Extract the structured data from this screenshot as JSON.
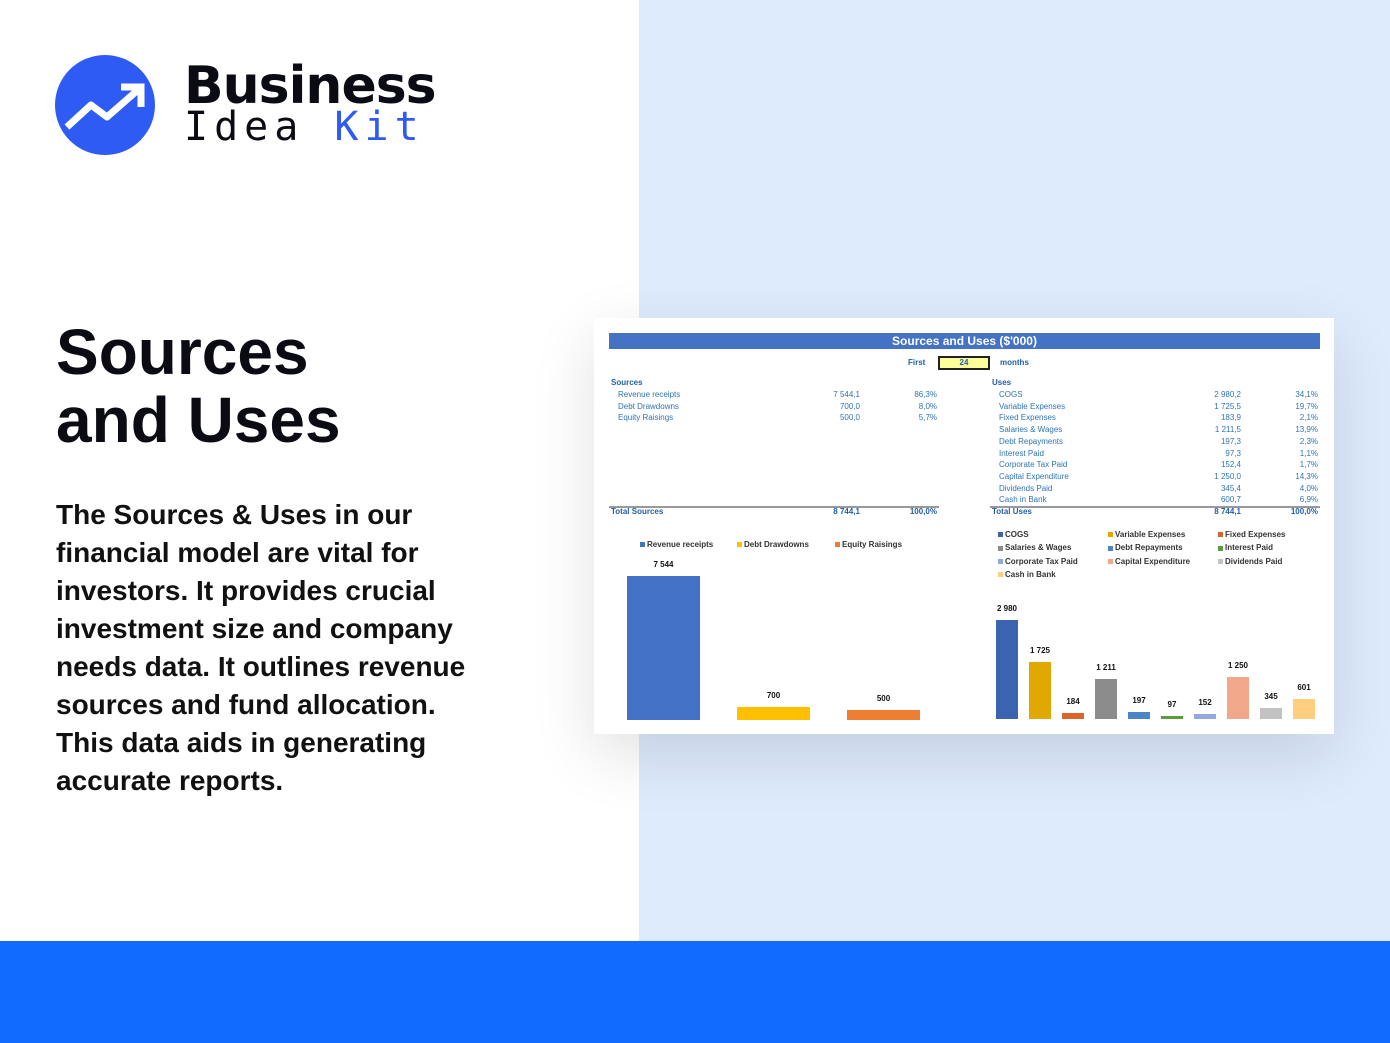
{
  "brand": {
    "line1": "Business",
    "line2a": "Idea",
    "line2b": "Kit",
    "accent": "#2f5bf5"
  },
  "title": [
    "Sources",
    "and Uses"
  ],
  "description": "The Sources & Uses in our financial model are vital for investors. It provides crucial investment size and company needs data. It outlines revenue sources and fund allocation. This data aids in generating accurate reports.",
  "sheet": {
    "header": "Sources and Uses ($'000)",
    "first_label": "First",
    "first_value": "24",
    "months_label": "months",
    "sources_label": "Sources",
    "sources": [
      [
        "Revenue receipts",
        "7 544,1",
        "86,3%"
      ],
      [
        "Debt Drawdowns",
        "700,0",
        "8,0%"
      ],
      [
        "Equity Raisings",
        "500,0",
        "5,7%"
      ]
    ],
    "total_sources": [
      "Total Sources",
      "8 744,1",
      "100,0%"
    ],
    "uses_label": "Uses",
    "uses": [
      [
        "COGS",
        "2 980,2",
        "34,1%"
      ],
      [
        "Variable Expenses",
        "1 725,5",
        "19,7%"
      ],
      [
        "Fixed Expenses",
        "183,9",
        "2,1%"
      ],
      [
        "Salaries & Wages",
        "1 211,5",
        "13,9%"
      ],
      [
        "Debt Repayments",
        "197,3",
        "2,3%"
      ],
      [
        "Interest Paid",
        "97,3",
        "1,1%"
      ],
      [
        "Corporate Tax Paid",
        "152,4",
        "1,7%"
      ],
      [
        "Capital Expenditure",
        "1 250,0",
        "14,3%"
      ],
      [
        "Dividends Paid",
        "345,4",
        "4,0%"
      ],
      [
        "Cash in Bank",
        "600,7",
        "6,9%"
      ]
    ],
    "total_uses": [
      "Total Uses",
      "8 744,1",
      "100,0%"
    ]
  },
  "chart_data": [
    {
      "type": "bar",
      "categories": [
        "Revenue receipts",
        "Debt Drawdowns",
        "Equity Raisings"
      ],
      "values": [
        7544,
        700,
        500
      ],
      "labels": [
        "7 544",
        "700",
        "500"
      ],
      "colors": [
        "#4472c4",
        "#ffc000",
        "#ed7d31"
      ],
      "legend": "top"
    },
    {
      "type": "bar",
      "categories": [
        "COGS",
        "Variable Expenses",
        "Fixed Expenses",
        "Salaries & Wages",
        "Debt Repayments",
        "Interest Paid",
        "Corporate Tax Paid",
        "Capital Expenditure",
        "Dividends Paid",
        "Cash in Bank"
      ],
      "values": [
        2980,
        1725,
        184,
        1211,
        197,
        97,
        152,
        1250,
        345,
        601
      ],
      "labels": [
        "2 980",
        "1 725",
        "184",
        "1 211",
        "197",
        "97",
        "152",
        "1 250",
        "345",
        "601"
      ],
      "colors": [
        "#3a64b0",
        "#e0a800",
        "#d9652b",
        "#8c8c8c",
        "#4a86c5",
        "#5a9e3a",
        "#93a8de",
        "#f0a78a",
        "#c2c2c2",
        "#ffcf80"
      ],
      "legend": "top"
    }
  ]
}
